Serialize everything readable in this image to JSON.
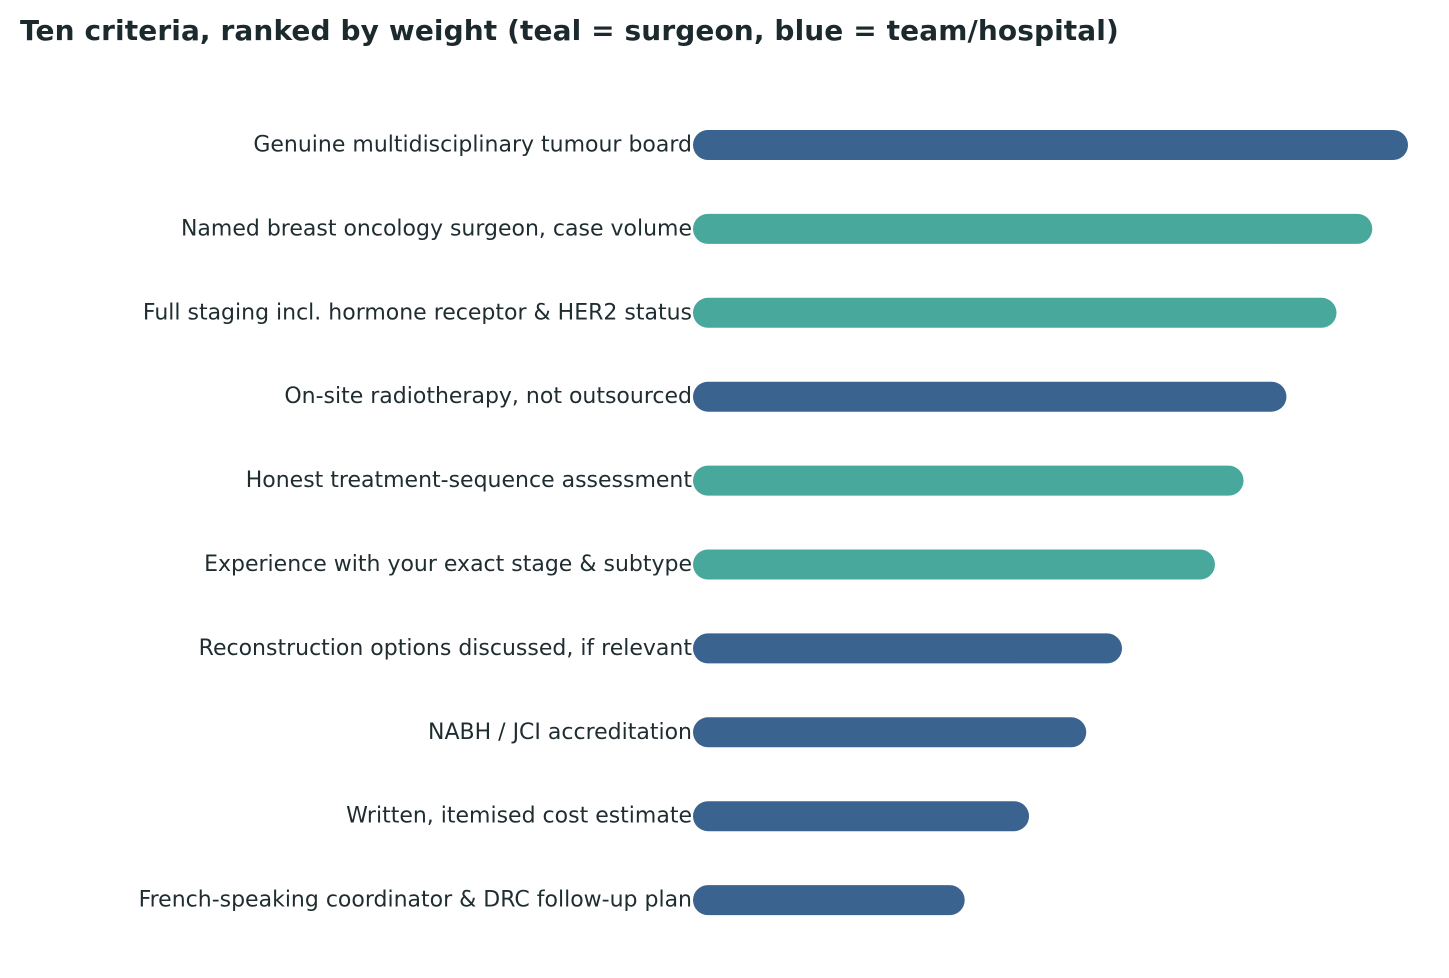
{
  "chart_data": {
    "type": "bar",
    "orientation": "horizontal",
    "title": "Ten criteria, ranked by weight (teal = surgeon, blue = team/hospital)",
    "xlabel": "",
    "ylabel": "",
    "xlim": [
      0,
      100
    ],
    "grid": false,
    "legend": "none",
    "categories": [
      "Genuine multidisciplinary tumour board",
      "Named breast oncology surgeon, case volume",
      "Full staging incl. hormone receptor & HER2 status",
      "On-site radiotherapy, not outsourced",
      "Honest treatment-sequence assessment",
      "Experience with your exact stage & subtype",
      "Reconstruction options discussed, if relevant",
      "NABH / JCI accreditation",
      "Written, itemised cost estimate",
      "French-speaking coordinator & DRC follow-up plan"
    ],
    "values": [
      100,
      95,
      90,
      83,
      77,
      73,
      60,
      55,
      47,
      38
    ],
    "groups": [
      "team",
      "surgeon",
      "surgeon",
      "team",
      "surgeon",
      "surgeon",
      "team",
      "team",
      "team",
      "team"
    ],
    "colors": {
      "surgeon": "#48a89c",
      "team": "#3a648f"
    }
  }
}
